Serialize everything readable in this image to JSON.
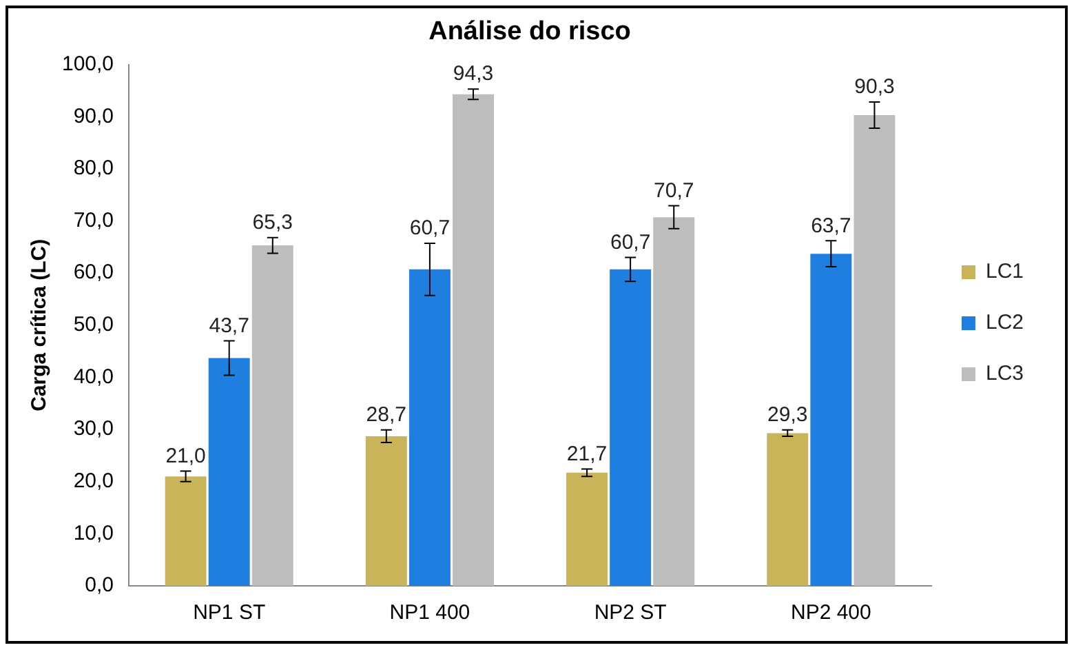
{
  "chart_data": {
    "type": "bar",
    "title": "Análise do risco",
    "ylabel": "Carga crítica (LC)",
    "categories": [
      "NP1 ST",
      "NP1 400",
      "NP2 ST",
      "NP2 400"
    ],
    "series": [
      {
        "name": "LC1",
        "color": "#c9b45a",
        "values": [
          21.0,
          28.7,
          21.7,
          29.3
        ],
        "errors": [
          1,
          1.2,
          0.7,
          0.6
        ],
        "value_labels": [
          "21,0",
          "28,7",
          "21,7",
          "29,3"
        ]
      },
      {
        "name": "LC2",
        "color": "#1f7fe0",
        "values": [
          43.7,
          60.7,
          60.7,
          63.7
        ],
        "errors": [
          3.3,
          5,
          2.3,
          2.5
        ],
        "value_labels": [
          "43,7",
          "60,7",
          "60,7",
          "63,7"
        ]
      },
      {
        "name": "LC3",
        "color": "#bdbdbd",
        "values": [
          65.3,
          94.3,
          70.7,
          90.3
        ],
        "errors": [
          1.5,
          1,
          2.2,
          2.5
        ],
        "value_labels": [
          "65,3",
          "94,3",
          "70,7",
          "90,3"
        ]
      }
    ],
    "ylim": [
      0,
      100
    ],
    "yticks": [
      {
        "value": 0,
        "label": "0,0"
      },
      {
        "value": 10,
        "label": "10,0"
      },
      {
        "value": 20,
        "label": "20,0"
      },
      {
        "value": 30,
        "label": "30,0"
      },
      {
        "value": 40,
        "label": "40,0"
      },
      {
        "value": 50,
        "label": "50,0"
      },
      {
        "value": 60,
        "label": "60,0"
      },
      {
        "value": 70,
        "label": "70,0"
      },
      {
        "value": 80,
        "label": "80,0"
      },
      {
        "value": 90,
        "label": "90,0"
      },
      {
        "value": 100,
        "label": "100,0"
      }
    ],
    "grid": false,
    "legend": "right"
  }
}
